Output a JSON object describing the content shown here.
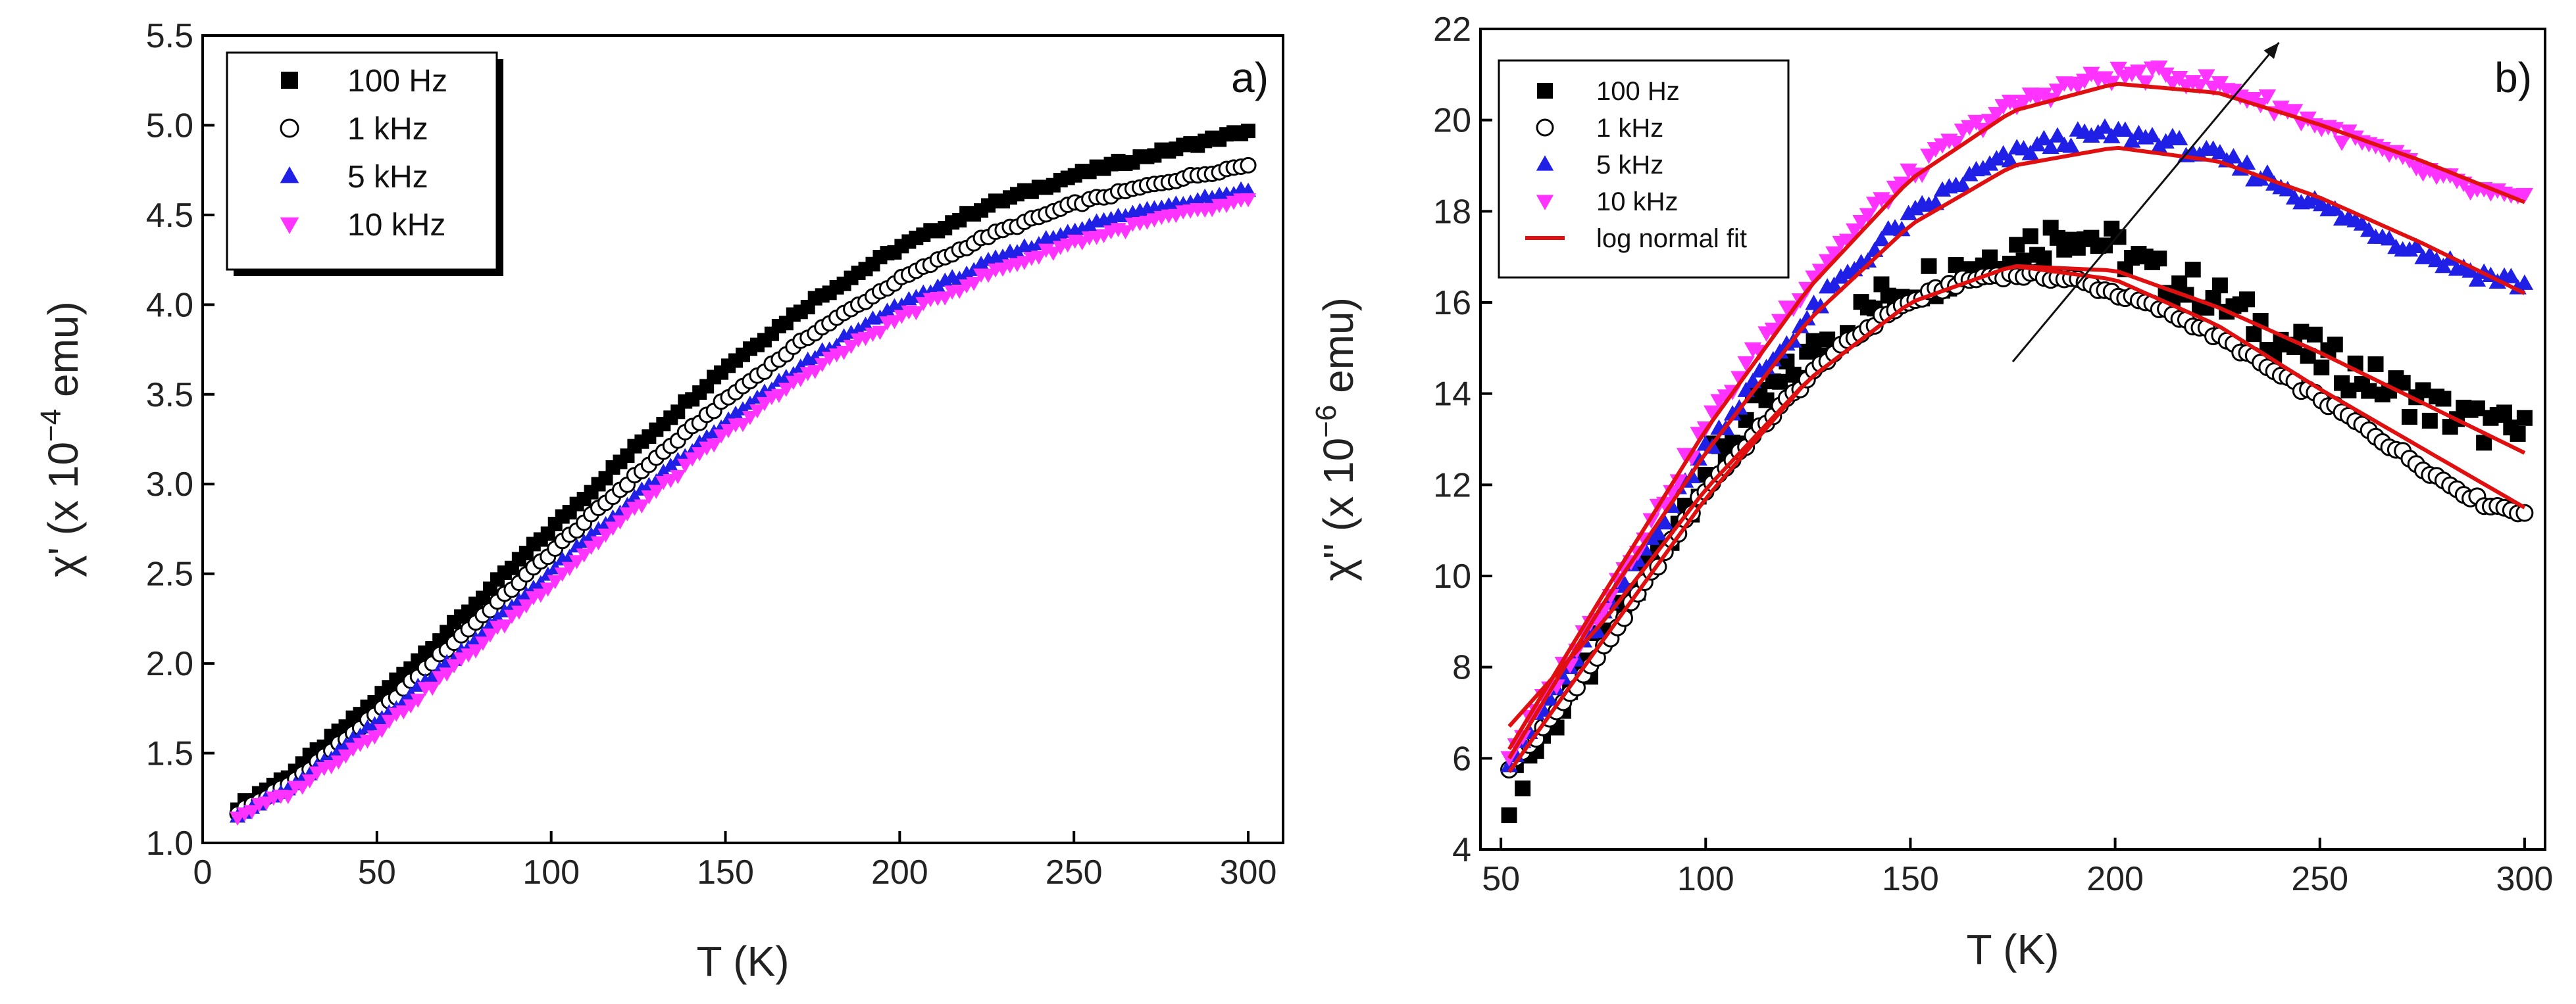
{
  "chart_data": [
    {
      "panel": "a)",
      "type": "scatter",
      "xlabel": "T (K)",
      "ylabel_prefix": "χ' (x 10",
      "ylabel_exp": "−4",
      "ylabel_suffix": " emu)",
      "xlim": [
        0,
        310
      ],
      "ylim": [
        1.0,
        5.5
      ],
      "xticks": [
        "0",
        "50",
        "100",
        "150",
        "200",
        "250",
        "300"
      ],
      "yticks": [
        "1.0",
        "1.5",
        "2.0",
        "2.5",
        "3.0",
        "3.5",
        "4.0",
        "4.5",
        "5.0",
        "5.5"
      ],
      "legend_position": "top-left",
      "series": [
        {
          "name": "100 Hz",
          "marker": "square",
          "color": "#000000",
          "x": [
            10,
            25,
            50,
            75,
            100,
            125,
            150,
            175,
            200,
            225,
            250,
            275,
            300
          ],
          "y": [
            1.2,
            1.38,
            1.8,
            2.27,
            2.75,
            3.22,
            3.65,
            4.02,
            4.32,
            4.55,
            4.72,
            4.85,
            4.97
          ]
        },
        {
          "name": "1 kHz",
          "marker": "circle-open",
          "color": "#000000",
          "x": [
            10,
            25,
            50,
            75,
            100,
            125,
            150,
            175,
            200,
            225,
            250,
            275,
            300
          ],
          "y": [
            1.17,
            1.33,
            1.72,
            2.17,
            2.62,
            3.06,
            3.47,
            3.84,
            4.14,
            4.38,
            4.56,
            4.68,
            4.78
          ]
        },
        {
          "name": "5 kHz",
          "marker": "triangle-up",
          "color": "#1f1fe6",
          "x": [
            10,
            25,
            50,
            75,
            100,
            125,
            150,
            175,
            200,
            225,
            250,
            275,
            300
          ],
          "y": [
            1.16,
            1.3,
            1.67,
            2.08,
            2.51,
            2.94,
            3.34,
            3.7,
            4.0,
            4.23,
            4.42,
            4.55,
            4.64
          ]
        },
        {
          "name": "10 kHz",
          "marker": "triangle-down",
          "color": "#ff33ff",
          "x": [
            10,
            25,
            50,
            75,
            100,
            125,
            150,
            175,
            200,
            225,
            250,
            275,
            300
          ],
          "y": [
            1.15,
            1.28,
            1.62,
            2.03,
            2.45,
            2.88,
            3.28,
            3.64,
            3.93,
            4.17,
            4.35,
            4.48,
            4.58
          ]
        }
      ]
    },
    {
      "panel": "b)",
      "type": "scatter",
      "xlabel": "T (K)",
      "ylabel_prefix": "χ'' (x 10",
      "ylabel_exp": "−6",
      "ylabel_suffix": " emu)",
      "xlim": [
        45,
        305
      ],
      "ylim": [
        4,
        22
      ],
      "xticks": [
        "50",
        "100",
        "150",
        "200",
        "250",
        "300"
      ],
      "yticks": [
        "4",
        "6",
        "8",
        "10",
        "12",
        "14",
        "16",
        "18",
        "20",
        "22"
      ],
      "legend_position": "top-left",
      "arrow": {
        "from": [
          175,
          14.7
        ],
        "to": [
          240,
          21.7
        ]
      },
      "fit_name": "log normal fit",
      "fit_color": "#e01010",
      "series": [
        {
          "name": "100 Hz",
          "marker": "square",
          "color": "#000000",
          "x": [
            52,
            60,
            75,
            90,
            100,
            115,
            130,
            145,
            160,
            170,
            180,
            190,
            200,
            210,
            220,
            230,
            240,
            250,
            260,
            270,
            280,
            290,
            300
          ],
          "y": [
            5.2,
            6.5,
            8.5,
            10.8,
            12.3,
            13.9,
            15.2,
            16.2,
            16.7,
            17.0,
            17.3,
            17.6,
            17.2,
            16.6,
            16.3,
            15.8,
            15.2,
            14.8,
            14.4,
            14.0,
            13.6,
            13.3,
            13.1
          ],
          "fit": {
            "x": [
              52,
              75,
              100,
              125,
              150,
              175,
              200,
              225,
              250,
              275,
              300
            ],
            "y": [
              6.7,
              9.0,
              11.9,
              14.3,
              16.0,
              16.8,
              16.7,
              15.9,
              14.9,
              13.8,
              12.7
            ]
          }
        },
        {
          "name": "1 kHz",
          "marker": "circle-open",
          "color": "#000000",
          "x": [
            52,
            60,
            75,
            90,
            100,
            115,
            130,
            145,
            160,
            170,
            180,
            190,
            200,
            210,
            220,
            230,
            240,
            250,
            260,
            270,
            280,
            290,
            300
          ],
          "y": [
            5.8,
            6.6,
            8.4,
            10.5,
            11.9,
            13.4,
            14.8,
            15.8,
            16.4,
            16.6,
            16.6,
            16.5,
            16.2,
            15.9,
            15.5,
            15.0,
            14.4,
            13.9,
            13.3,
            12.7,
            12.1,
            11.6,
            11.4
          ],
          "fit": {
            "x": [
              52,
              75,
              100,
              125,
              150,
              175,
              200,
              225,
              250,
              275,
              300
            ],
            "y": [
              5.7,
              8.6,
              11.7,
              14.3,
              16.0,
              16.8,
              16.5,
              15.5,
              14.1,
              12.8,
              11.5
            ]
          }
        },
        {
          "name": "5 kHz",
          "marker": "triangle-up",
          "color": "#1f1fe6",
          "x": [
            52,
            60,
            75,
            90,
            100,
            115,
            130,
            145,
            160,
            170,
            180,
            190,
            200,
            210,
            220,
            230,
            240,
            250,
            260,
            270,
            280,
            290,
            300
          ],
          "y": [
            6.0,
            7.0,
            9.1,
            11.3,
            12.8,
            14.6,
            16.2,
            17.5,
            18.5,
            19.0,
            19.4,
            19.6,
            19.7,
            19.6,
            19.3,
            19.0,
            18.6,
            18.1,
            17.7,
            17.3,
            16.9,
            16.6,
            16.4
          ],
          "fit": {
            "x": [
              52,
              75,
              100,
              125,
              150,
              175,
              200,
              225,
              250,
              275,
              300
            ],
            "y": [
              6.0,
              9.4,
              12.7,
              15.6,
              17.7,
              19.0,
              19.4,
              19.1,
              18.3,
              17.3,
              16.2
            ]
          }
        },
        {
          "name": "10 kHz",
          "marker": "triangle-down",
          "color": "#ff33ff",
          "x": [
            52,
            60,
            75,
            90,
            100,
            115,
            130,
            145,
            160,
            170,
            180,
            190,
            200,
            210,
            220,
            230,
            240,
            250,
            260,
            270,
            280,
            290,
            300
          ],
          "y": [
            6.1,
            7.2,
            9.4,
            11.7,
            13.3,
            15.3,
            17.0,
            18.4,
            19.5,
            20.1,
            20.5,
            20.8,
            21.0,
            21.0,
            20.9,
            20.6,
            20.3,
            19.9,
            19.5,
            19.1,
            18.7,
            18.4,
            18.2
          ],
          "fit": {
            "x": [
              52,
              75,
              100,
              125,
              150,
              175,
              200,
              225,
              250,
              275,
              300
            ],
            "y": [
              6.2,
              9.6,
              13.2,
              16.3,
              18.7,
              20.2,
              20.8,
              20.6,
              19.9,
              19.1,
              18.2
            ]
          }
        }
      ]
    }
  ]
}
